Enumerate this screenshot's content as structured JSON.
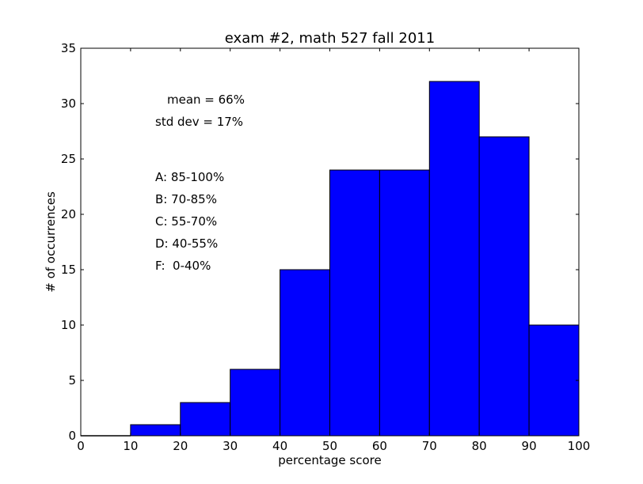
{
  "chart_data": {
    "type": "bar",
    "title": "exam #2, math 527 fall 2011",
    "xlabel": "percentage score",
    "ylabel": "# of occurrences",
    "xlim": [
      0,
      100
    ],
    "ylim": [
      0,
      35
    ],
    "xticks": [
      0,
      10,
      20,
      30,
      40,
      50,
      60,
      70,
      80,
      90,
      100
    ],
    "yticks": [
      0,
      5,
      10,
      15,
      20,
      25,
      30,
      35
    ],
    "bins": [
      {
        "x0": 0,
        "x1": 10,
        "value": 0
      },
      {
        "x0": 10,
        "x1": 20,
        "value": 1
      },
      {
        "x0": 20,
        "x1": 30,
        "value": 3
      },
      {
        "x0": 30,
        "x1": 40,
        "value": 6
      },
      {
        "x0": 40,
        "x1": 50,
        "value": 15
      },
      {
        "x0": 50,
        "x1": 60,
        "value": 24
      },
      {
        "x0": 60,
        "x1": 70,
        "value": 24
      },
      {
        "x0": 70,
        "x1": 80,
        "value": 32
      },
      {
        "x0": 80,
        "x1": 90,
        "value": 27
      },
      {
        "x0": 90,
        "x1": 100,
        "value": 10
      }
    ],
    "bar_color": "#0000ff",
    "grid": false,
    "annotations": {
      "mean": "mean = 66%",
      "std": "std dev = 17%",
      "grade_a": "A: 85-100%",
      "grade_b": "B: 70-85%",
      "grade_c": "C: 55-70%",
      "grade_d": "D: 40-55%",
      "grade_f": "F:  0-40%"
    }
  }
}
